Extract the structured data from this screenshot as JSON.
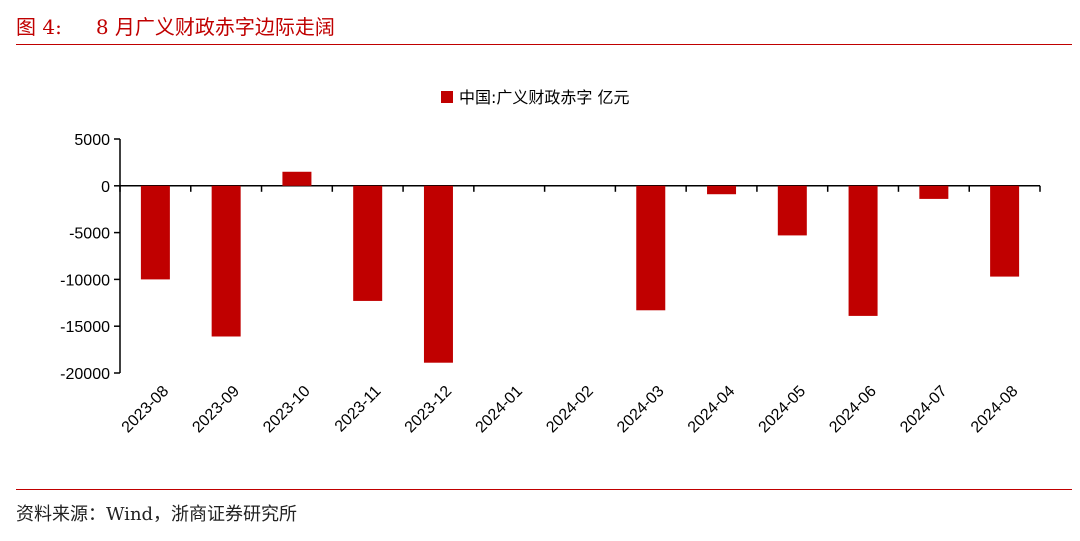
{
  "header": {
    "figure_label": "图 4:",
    "figure_title": "8 月广义财政赤字边际走阔"
  },
  "footer": {
    "source": "资料来源：Wind，浙商证券研究所"
  },
  "colors": {
    "accent": "#c00000",
    "bar": "#c00000"
  },
  "chart_data": {
    "type": "bar",
    "categories": [
      "2023-08",
      "2023-09",
      "2023-10",
      "2023-11",
      "2023-12",
      "2024-01",
      "2024-02",
      "2024-03",
      "2024-04",
      "2024-05",
      "2024-06",
      "2024-07",
      "2024-08"
    ],
    "series": [
      {
        "name": "中国:广义财政赤字 亿元",
        "values": [
          -10000,
          -16100,
          1500,
          -12300,
          -18900,
          null,
          null,
          -13300,
          -900,
          -5300,
          -13900,
          -1400,
          -9700
        ]
      }
    ],
    "yticks": [
      5000,
      0,
      -5000,
      -10000,
      -15000,
      -20000
    ],
    "ylim": [
      -20000,
      5000
    ],
    "legend_position": "top-center",
    "grid": false,
    "xlabel": "",
    "ylabel": ""
  }
}
